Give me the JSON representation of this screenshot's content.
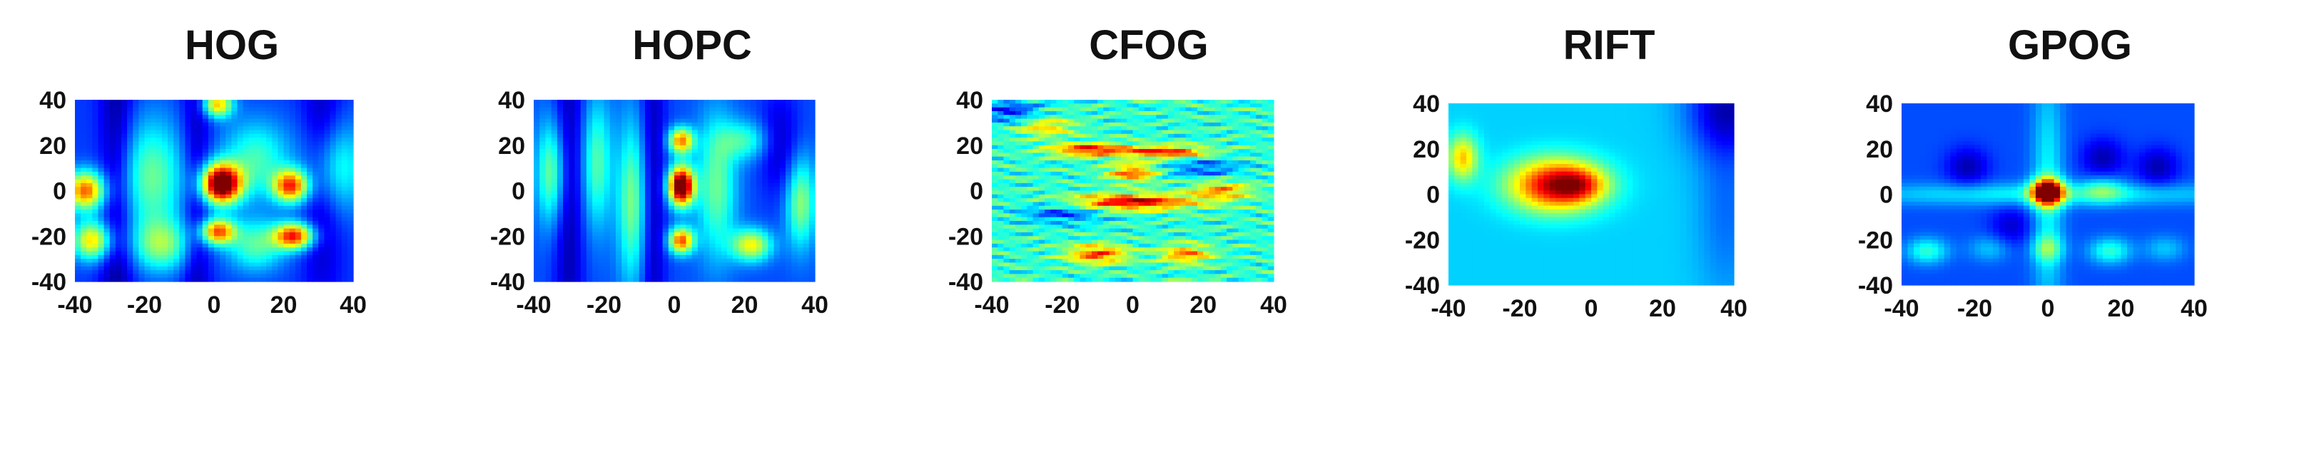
{
  "colors": {
    "colormap": "jet",
    "low": "#00008f",
    "mid": "#00ffff",
    "high": "#800000"
  },
  "chart_data": [
    {
      "type": "heatmap",
      "title": "HOG",
      "xlim": [
        -40,
        40
      ],
      "ylim": [
        -40,
        40
      ],
      "x_ticks": [
        "-40",
        "-20",
        "0",
        "20",
        "40"
      ],
      "y_ticks": [
        "40",
        "20",
        "0",
        "-20",
        "-40"
      ],
      "base": 0.18,
      "peaks": [
        {
          "x": 2,
          "y": 3,
          "sx": 4,
          "sy": 6,
          "a": 0.95
        },
        {
          "x": 1,
          "y": -18,
          "sx": 3.5,
          "sy": 4,
          "a": 0.6
        },
        {
          "x": 22,
          "y": 2,
          "sx": 3.5,
          "sy": 5,
          "a": 0.62
        },
        {
          "x": 23,
          "y": -20,
          "sx": 4,
          "sy": 4,
          "a": 0.66
        },
        {
          "x": -37,
          "y": 0,
          "sx": 4,
          "sy": 6,
          "a": 0.6
        },
        {
          "x": -35,
          "y": -22,
          "sx": 4,
          "sy": 6,
          "a": 0.48
        },
        {
          "x": -18,
          "y": 6,
          "sx": 7,
          "sy": 18,
          "a": 0.3
        },
        {
          "x": 12,
          "y": 14,
          "sx": 7,
          "sy": 12,
          "a": 0.26
        },
        {
          "x": 35,
          "y": 10,
          "sx": 6,
          "sy": 14,
          "a": 0.26
        },
        {
          "x": 1,
          "y": 38,
          "sx": 3,
          "sy": 4,
          "a": 0.5
        },
        {
          "x": -15,
          "y": -24,
          "sx": 6,
          "sy": 8,
          "a": 0.3
        },
        {
          "x": 12,
          "y": -24,
          "sx": 6,
          "sy": 8,
          "a": 0.28
        }
      ],
      "dips": [
        {
          "x": -28,
          "y": 0,
          "sx": 3.5,
          "sy": 80,
          "a": 0.17
        },
        {
          "x": -5,
          "y": 0,
          "sx": 3,
          "sy": 80,
          "a": 0.14
        },
        {
          "x": 31,
          "y": 10,
          "sx": 4,
          "sy": 40,
          "a": 0.16
        }
      ]
    },
    {
      "type": "heatmap",
      "title": "HOPC",
      "xlim": [
        -40,
        40
      ],
      "ylim": [
        -40,
        40
      ],
      "x_ticks": [
        "-40",
        "-20",
        "0",
        "20",
        "40"
      ],
      "y_ticks": [
        "40",
        "20",
        "0",
        "-20",
        "-40"
      ],
      "base": 0.2,
      "peaks": [
        {
          "x": 2,
          "y": 2,
          "sx": 2.5,
          "sy": 6,
          "a": 0.95
        },
        {
          "x": 2,
          "y": -22,
          "sx": 2.5,
          "sy": 4,
          "a": 0.6
        },
        {
          "x": 2,
          "y": 22,
          "sx": 2.5,
          "sy": 4,
          "a": 0.55
        },
        {
          "x": -35,
          "y": 8,
          "sx": 3,
          "sy": 16,
          "a": 0.3
        },
        {
          "x": -22,
          "y": 12,
          "sx": 3,
          "sy": 20,
          "a": 0.26
        },
        {
          "x": -12,
          "y": -5,
          "sx": 3,
          "sy": 25,
          "a": 0.3
        },
        {
          "x": 12,
          "y": 2,
          "sx": 4,
          "sy": 22,
          "a": 0.28
        },
        {
          "x": 22,
          "y": -24,
          "sx": 4,
          "sy": 5,
          "a": 0.42
        },
        {
          "x": 36,
          "y": -5,
          "sx": 3,
          "sy": 14,
          "a": 0.32
        },
        {
          "x": 20,
          "y": 22,
          "sx": 5,
          "sy": 6,
          "a": 0.22
        }
      ],
      "dips": [
        {
          "x": -30,
          "y": 0,
          "sx": 3,
          "sy": 80,
          "a": 0.16
        },
        {
          "x": -6,
          "y": 0,
          "sx": 2.5,
          "sy": 80,
          "a": 0.15
        },
        {
          "x": 30,
          "y": 20,
          "sx": 4,
          "sy": 16,
          "a": 0.14
        }
      ]
    },
    {
      "type": "heatmap",
      "title": "CFOG",
      "xlim": [
        -40,
        40
      ],
      "ylim": [
        -40,
        40
      ],
      "x_ticks": [
        "-40",
        "-20",
        "0",
        "20",
        "40"
      ],
      "y_ticks": [
        "40",
        "20",
        "0",
        "-20",
        "-40"
      ],
      "base": 0.42,
      "peaks": [
        {
          "x": 0,
          "y": -5,
          "sx": 12,
          "sy": 2.5,
          "a": 0.5
        },
        {
          "x": -12,
          "y": 18,
          "sx": 8,
          "sy": 2,
          "a": 0.45
        },
        {
          "x": 10,
          "y": 17,
          "sx": 8,
          "sy": 2,
          "a": 0.42
        },
        {
          "x": 0,
          "y": 8,
          "sx": 5,
          "sy": 3,
          "a": 0.35
        },
        {
          "x": -10,
          "y": -28,
          "sx": 6,
          "sy": 3,
          "a": 0.38
        },
        {
          "x": 15,
          "y": -28,
          "sx": 5,
          "sy": 3,
          "a": 0.32
        },
        {
          "x": -25,
          "y": 28,
          "sx": 6,
          "sy": 3,
          "a": 0.25
        },
        {
          "x": 25,
          "y": 0,
          "sx": 6,
          "sy": 3,
          "a": 0.3
        }
      ],
      "dips": [
        {
          "x": -20,
          "y": -10,
          "sx": 8,
          "sy": 3,
          "a": 0.22
        },
        {
          "x": 20,
          "y": 10,
          "sx": 8,
          "sy": 3,
          "a": 0.2
        },
        {
          "x": -35,
          "y": 35,
          "sx": 6,
          "sy": 4,
          "a": 0.25
        }
      ],
      "stripes": 0.12
    },
    {
      "type": "heatmap",
      "title": "RIFT",
      "xlim": [
        -40,
        40
      ],
      "ylim": [
        -40,
        40
      ],
      "x_ticks": [
        "-40",
        "-20",
        "0",
        "20",
        "40"
      ],
      "y_ticks": [
        "40",
        "20",
        "0",
        "-20",
        "-40"
      ],
      "base": 0.33,
      "peaks": [
        {
          "x": -10,
          "y": 4,
          "sx": 9,
          "sy": 8,
          "a": 0.6
        },
        {
          "x": -3,
          "y": 4,
          "sx": 5,
          "sy": 5,
          "a": 0.22
        },
        {
          "x": -36,
          "y": 16,
          "sx": 3,
          "sy": 7,
          "a": 0.35
        }
      ],
      "dips": [
        {
          "x": 38,
          "y": 38,
          "sx": 8,
          "sy": 14,
          "a": 0.25
        },
        {
          "x": 38,
          "y": -5,
          "sx": 6,
          "sy": 30,
          "a": 0.1
        }
      ],
      "stripes": 0
    },
    {
      "type": "heatmap",
      "title": "GPOG",
      "xlim": [
        -40,
        40
      ],
      "ylim": [
        -40,
        40
      ],
      "x_ticks": [
        "-40",
        "-20",
        "0",
        "20",
        "40"
      ],
      "y_ticks": [
        "40",
        "20",
        "0",
        "-20",
        "-40"
      ],
      "base": 0.2,
      "peaks": [
        {
          "x": 0,
          "y": 1,
          "sx": 3,
          "sy": 4,
          "a": 0.8
        },
        {
          "x": 0,
          "y": 0,
          "sx": 3,
          "sy": 40,
          "a": 0.18
        },
        {
          "x": 0,
          "y": 0,
          "sx": 40,
          "sy": 3.5,
          "a": 0.18
        },
        {
          "x": 15,
          "y": 2,
          "sx": 4,
          "sy": 4,
          "a": 0.18
        },
        {
          "x": -33,
          "y": -25,
          "sx": 4,
          "sy": 4,
          "a": 0.22
        },
        {
          "x": 17,
          "y": -25,
          "sx": 4,
          "sy": 4,
          "a": 0.22
        },
        {
          "x": 0,
          "y": -24,
          "sx": 3,
          "sy": 4,
          "a": 0.2
        },
        {
          "x": 32,
          "y": -24,
          "sx": 4,
          "sy": 4,
          "a": 0.12
        },
        {
          "x": -16,
          "y": -24,
          "sx": 4,
          "sy": 4,
          "a": 0.12
        }
      ],
      "dips": [
        {
          "x": -22,
          "y": 12,
          "sx": 4,
          "sy": 6,
          "a": 0.15
        },
        {
          "x": 15,
          "y": 16,
          "sx": 4,
          "sy": 6,
          "a": 0.15
        },
        {
          "x": 30,
          "y": 12,
          "sx": 4,
          "sy": 6,
          "a": 0.15
        },
        {
          "x": -10,
          "y": -14,
          "sx": 4,
          "sy": 6,
          "a": 0.12
        }
      ],
      "stripes": 0
    }
  ]
}
